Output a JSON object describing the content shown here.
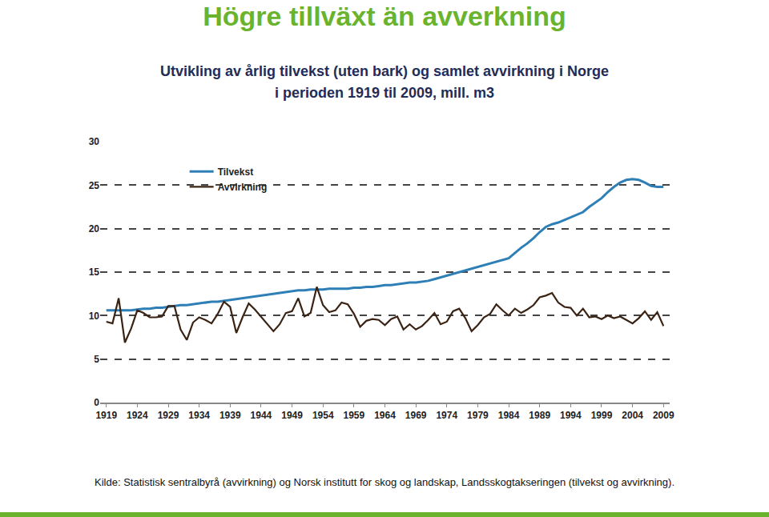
{
  "heading": "Högre tillväxt än avverkning",
  "source": "Kilde: Statistisk sentralbyrå (avvirkning) og Norsk institutt for skog og landskap, Landsskogtakseringen (tilvekst og avvirkning).",
  "chart_data": {
    "type": "line",
    "title": "Utvikling av årlig tilvekst (uten bark) og samlet avvirkning i Norge\ni perioden 1919 til 2009, mill. m3",
    "x": [
      1919,
      1920,
      1921,
      1922,
      1923,
      1924,
      1925,
      1926,
      1927,
      1928,
      1929,
      1930,
      1931,
      1932,
      1933,
      1934,
      1935,
      1936,
      1937,
      1938,
      1939,
      1940,
      1941,
      1942,
      1943,
      1944,
      1945,
      1946,
      1947,
      1948,
      1949,
      1950,
      1951,
      1952,
      1953,
      1954,
      1955,
      1956,
      1957,
      1958,
      1959,
      1960,
      1961,
      1962,
      1963,
      1964,
      1965,
      1966,
      1967,
      1968,
      1969,
      1970,
      1971,
      1972,
      1973,
      1974,
      1975,
      1976,
      1977,
      1978,
      1979,
      1980,
      1981,
      1982,
      1983,
      1984,
      1985,
      1986,
      1987,
      1988,
      1989,
      1990,
      1991,
      1992,
      1993,
      1994,
      1995,
      1996,
      1997,
      1998,
      1999,
      2000,
      2001,
      2002,
      2003,
      2004,
      2005,
      2006,
      2007,
      2008,
      2009
    ],
    "xlim": [
      1918,
      2010
    ],
    "xticks": [
      1919,
      1924,
      1929,
      1934,
      1939,
      1944,
      1949,
      1954,
      1959,
      1964,
      1969,
      1974,
      1979,
      1984,
      1989,
      1994,
      1999,
      2004,
      2009
    ],
    "ylim": [
      0,
      30
    ],
    "yticks": [
      0,
      5,
      10,
      15,
      20,
      25,
      30
    ],
    "grid": true,
    "legend": "top left",
    "series": [
      {
        "name": "Tilvekst",
        "color": "#2f7fb7",
        "values": [
          10.6,
          10.6,
          10.6,
          10.6,
          10.6,
          10.7,
          10.8,
          10.8,
          10.9,
          10.9,
          11.0,
          11.1,
          11.2,
          11.2,
          11.3,
          11.4,
          11.5,
          11.6,
          11.6,
          11.7,
          11.8,
          11.9,
          12.0,
          12.1,
          12.2,
          12.3,
          12.4,
          12.5,
          12.6,
          12.7,
          12.8,
          12.9,
          12.9,
          13.0,
          13.0,
          13.0,
          13.1,
          13.1,
          13.1,
          13.1,
          13.2,
          13.2,
          13.3,
          13.3,
          13.4,
          13.5,
          13.5,
          13.6,
          13.7,
          13.8,
          13.8,
          13.9,
          14.0,
          14.2,
          14.4,
          14.6,
          14.8,
          15.0,
          15.2,
          15.4,
          15.6,
          15.8,
          16.0,
          16.2,
          16.4,
          16.6,
          17.2,
          17.8,
          18.3,
          18.9,
          19.6,
          20.2,
          20.5,
          20.7,
          21.0,
          21.3,
          21.6,
          21.9,
          22.5,
          23.0,
          23.5,
          24.2,
          24.8,
          25.3,
          25.6,
          25.7,
          25.6,
          25.3,
          24.9,
          24.8,
          24.8
        ]
      },
      {
        "name": "Avvirkning",
        "color": "#3b2314",
        "values": [
          9.3,
          9.1,
          12.0,
          6.9,
          8.5,
          10.6,
          10.3,
          9.8,
          9.8,
          9.9,
          11.1,
          11.1,
          8.4,
          7.2,
          9.2,
          9.8,
          9.5,
          9.1,
          10.2,
          11.6,
          11.0,
          8.0,
          9.8,
          11.4,
          10.7,
          9.9,
          9.0,
          8.2,
          9.0,
          10.3,
          10.5,
          12.0,
          9.9,
          10.3,
          13.3,
          11.2,
          10.4,
          10.6,
          11.5,
          11.3,
          10.2,
          8.7,
          9.4,
          9.6,
          9.5,
          8.9,
          9.6,
          9.9,
          8.4,
          9.0,
          8.4,
          8.8,
          9.5,
          10.3,
          9.0,
          9.3,
          10.5,
          10.8,
          9.7,
          8.2,
          8.9,
          9.8,
          10.2,
          11.3,
          10.6,
          10.0,
          10.8,
          10.3,
          10.7,
          11.2,
          12.1,
          12.3,
          12.6,
          11.5,
          11.0,
          10.9,
          10.0,
          10.8,
          9.8,
          9.9,
          9.6,
          10.0,
          9.7,
          9.9,
          9.5,
          9.1,
          9.7,
          10.5,
          9.5,
          10.4,
          8.8
        ]
      }
    ]
  }
}
